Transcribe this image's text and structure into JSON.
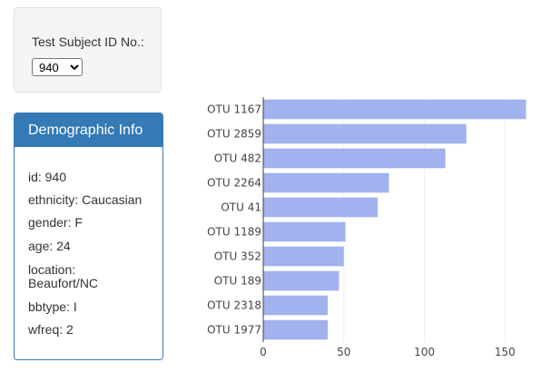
{
  "selector": {
    "label": "Test Subject ID No.:",
    "selected": "940"
  },
  "demographic": {
    "title": "Demographic Info",
    "rows": [
      "id: 940",
      "ethnicity: Caucasian",
      "gender: F",
      "age: 24",
      "location: Beaufort/NC",
      "bbtype: I",
      "wfreq: 2"
    ]
  },
  "colors": {
    "panel_blue": "#337ab7",
    "bar_fill": "#a1b2ef"
  },
  "chart_data": {
    "type": "bar",
    "orientation": "horizontal",
    "categories": [
      "OTU 1167",
      "OTU 2859",
      "OTU 482",
      "OTU 2264",
      "OTU 41",
      "OTU 1189",
      "OTU 352",
      "OTU 189",
      "OTU 2318",
      "OTU 1977"
    ],
    "values": [
      163,
      126,
      113,
      78,
      71,
      51,
      50,
      47,
      40,
      40
    ],
    "xlim": [
      0,
      165
    ],
    "xticks": [
      0,
      50,
      100,
      150
    ],
    "grid": true,
    "title": "",
    "xlabel": "",
    "ylabel": ""
  }
}
